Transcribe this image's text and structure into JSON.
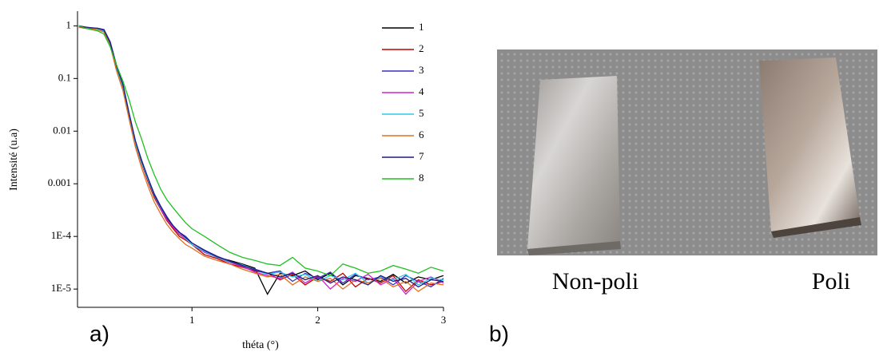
{
  "chart_data": {
    "type": "line",
    "yscale": "log",
    "x_label": "théta (°)",
    "y_label": "Intensité (u.a)",
    "xlim": [
      0.09,
      3
    ],
    "xticks": [
      1,
      2,
      3
    ],
    "ylim": [
      4.5e-06,
      1.9
    ],
    "yticks": [
      1,
      0.1,
      0.01,
      0.001,
      {
        "value": 0.0001,
        "label": "1E-4"
      },
      {
        "value": 1e-05,
        "label": "1E-5"
      }
    ],
    "legend": "upper right",
    "x": [
      0.1,
      0.15,
      0.2,
      0.25,
      0.3,
      0.35,
      0.4,
      0.45,
      0.5,
      0.55,
      0.6,
      0.65,
      0.7,
      0.75,
      0.8,
      0.85,
      0.9,
      0.95,
      1.0,
      1.1,
      1.2,
      1.3,
      1.4,
      1.5,
      1.6,
      1.7,
      1.8,
      1.9,
      2.0,
      2.1,
      2.2,
      2.3,
      2.4,
      2.5,
      2.6,
      2.7,
      2.8,
      2.9,
      3.0
    ],
    "series": [
      {
        "name": "1",
        "color": "#000000",
        "values": [
          1,
          0.95,
          0.9,
          0.85,
          0.8,
          0.45,
          0.16,
          0.075,
          0.02,
          0.006,
          0.0025,
          0.0012,
          0.0006,
          0.00035,
          0.00022,
          0.00015,
          0.00011,
          9e-05,
          7e-05,
          5e-05,
          4e-05,
          3.5e-05,
          3e-05,
          2.5e-05,
          8e-06,
          2e-05,
          1.8e-05,
          2.2e-05,
          1.5e-05,
          2e-05,
          1.2e-05,
          1.8e-05,
          1.6e-05,
          1.4e-05,
          1.9e-05,
          1.3e-05,
          1.7e-05,
          1.5e-05,
          1.8e-05
        ]
      },
      {
        "name": "2",
        "color": "#c00000",
        "values": [
          0.95,
          0.9,
          0.92,
          0.88,
          0.82,
          0.47,
          0.17,
          0.07,
          0.019,
          0.0058,
          0.0024,
          0.0011,
          0.00055,
          0.00033,
          0.0002,
          0.00014,
          0.0001,
          8.5e-05,
          7e-05,
          4.5e-05,
          3.8e-05,
          3e-05,
          2.6e-05,
          2.2e-05,
          2e-05,
          1.5e-05,
          1.9e-05,
          1.2e-05,
          1.7e-05,
          1.4e-05,
          2e-05,
          1.1e-05,
          1.6e-05,
          1.3e-05,
          1.8e-05,
          9e-06,
          1.5e-05,
          1.2e-05,
          1.4e-05
        ]
      },
      {
        "name": "3",
        "color": "#3a2fc0",
        "values": [
          1,
          0.92,
          0.88,
          0.9,
          0.85,
          0.5,
          0.18,
          0.08,
          0.022,
          0.0065,
          0.0028,
          0.0013,
          0.00065,
          0.00038,
          0.00024,
          0.00016,
          0.00012,
          0.0001,
          7.5e-05,
          5.5e-05,
          4.2e-05,
          3.4e-05,
          2.8e-05,
          2.4e-05,
          2e-05,
          2.2e-05,
          1.4e-05,
          2e-05,
          1.6e-05,
          2.1e-05,
          1.3e-05,
          1.9e-05,
          1.5e-05,
          1.7e-05,
          1.2e-05,
          1.8e-05,
          1.4e-05,
          1.1e-05,
          1.6e-05
        ]
      },
      {
        "name": "4",
        "color": "#d020d0",
        "values": [
          0.98,
          0.93,
          0.9,
          0.87,
          0.78,
          0.44,
          0.15,
          0.07,
          0.02,
          0.0062,
          0.0026,
          0.0012,
          0.0006,
          0.00034,
          0.00021,
          0.00015,
          0.00011,
          9e-05,
          7e-05,
          5e-05,
          4e-05,
          3.2e-05,
          2.7e-05,
          2.1e-05,
          1.8e-05,
          1.6e-05,
          2.1e-05,
          1.3e-05,
          1.8e-05,
          1e-05,
          1.6e-05,
          1.4e-05,
          1.9e-05,
          1.2e-05,
          1.6e-05,
          8e-06,
          1.4e-05,
          1.7e-05,
          1.3e-05
        ]
      },
      {
        "name": "5",
        "color": "#30c8e8",
        "values": [
          1,
          0.94,
          0.91,
          0.86,
          0.8,
          0.46,
          0.16,
          0.072,
          0.021,
          0.006,
          0.0025,
          0.0012,
          0.0006,
          0.00036,
          0.00023,
          0.00016,
          0.00012,
          9e-05,
          7e-05,
          5.2e-05,
          4e-05,
          3.3e-05,
          2.9e-05,
          2.3e-05,
          1.9e-05,
          2.1e-05,
          1.7e-05,
          1.9e-05,
          1.4e-05,
          1.8e-05,
          1.5e-05,
          2e-05,
          1.3e-05,
          1.7e-05,
          1.5e-05,
          1.9e-05,
          1.2e-05,
          1.6e-05,
          1.5e-05
        ]
      },
      {
        "name": "6",
        "color": "#e07020",
        "values": [
          0.97,
          0.92,
          0.89,
          0.84,
          0.76,
          0.42,
          0.14,
          0.06,
          0.017,
          0.005,
          0.002,
          0.0009,
          0.00045,
          0.00027,
          0.00017,
          0.00012,
          9e-05,
          7e-05,
          6e-05,
          4.2e-05,
          3.5e-05,
          3e-05,
          2.4e-05,
          2e-05,
          1.7e-05,
          1.9e-05,
          1.2e-05,
          1.7e-05,
          1.4e-05,
          1.6e-05,
          1e-05,
          1.5e-05,
          1.3e-05,
          1.6e-05,
          1.1e-05,
          1.4e-05,
          9e-06,
          1.3e-05,
          1.2e-05
        ]
      },
      {
        "name": "7",
        "color": "#1c1c80",
        "values": [
          1,
          0.95,
          0.92,
          0.9,
          0.83,
          0.48,
          0.17,
          0.078,
          0.022,
          0.0066,
          0.0027,
          0.0013,
          0.00062,
          0.00037,
          0.00023,
          0.00016,
          0.00012,
          9.5e-05,
          7.5e-05,
          5.4e-05,
          4.1e-05,
          3.4e-05,
          2.8e-05,
          2.3e-05,
          2e-05,
          1.7e-05,
          2e-05,
          1.5e-05,
          1.8e-05,
          1.3e-05,
          1.7e-05,
          1.5e-05,
          1.2e-05,
          1.8e-05,
          1.4e-05,
          1.6e-05,
          1.1e-05,
          1.5e-05,
          1.4e-05
        ]
      },
      {
        "name": "8",
        "color": "#20c020",
        "values": [
          1,
          0.9,
          0.85,
          0.8,
          0.7,
          0.4,
          0.18,
          0.09,
          0.04,
          0.015,
          0.007,
          0.003,
          0.0015,
          0.0008,
          0.0005,
          0.00035,
          0.00025,
          0.00018,
          0.00014,
          0.0001,
          7e-05,
          5e-05,
          4e-05,
          3.5e-05,
          3e-05,
          2.8e-05,
          4e-05,
          2.5e-05,
          2.2e-05,
          1.8e-05,
          3e-05,
          2.5e-05,
          2e-05,
          2.2e-05,
          2.8e-05,
          2.4e-05,
          2e-05,
          2.6e-05,
          2.2e-05
        ]
      }
    ]
  },
  "panel_labels": [
    "a)",
    "b)"
  ],
  "photo": {
    "labels": [
      "Non-poli",
      "Poli"
    ]
  }
}
